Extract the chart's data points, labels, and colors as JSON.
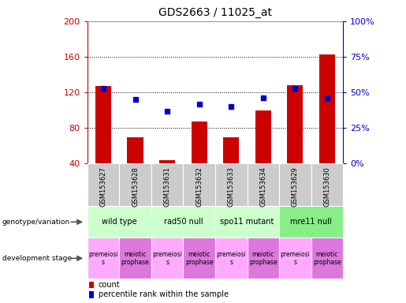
{
  "title": "GDS2663 / 11025_at",
  "samples": [
    "GSM153627",
    "GSM153628",
    "GSM153631",
    "GSM153632",
    "GSM153633",
    "GSM153634",
    "GSM153629",
    "GSM153630"
  ],
  "counts": [
    127,
    70,
    44,
    87,
    70,
    100,
    128,
    163
  ],
  "percentiles": [
    53,
    45,
    37,
    42,
    40,
    46,
    53,
    46
  ],
  "ylim_left": [
    40,
    200
  ],
  "ylim_right": [
    0,
    100
  ],
  "yticks_left": [
    40,
    80,
    120,
    160,
    200
  ],
  "yticks_right": [
    0,
    25,
    50,
    75,
    100
  ],
  "bar_color": "#cc0000",
  "dot_color": "#0000cc",
  "genotype_groups": [
    {
      "label": "wild type",
      "start": 0,
      "end": 2,
      "color": "#ccffcc"
    },
    {
      "label": "rad50 null",
      "start": 2,
      "end": 4,
      "color": "#ccffcc"
    },
    {
      "label": "spo11 mutant",
      "start": 4,
      "end": 6,
      "color": "#ccffcc"
    },
    {
      "label": "mre11 null",
      "start": 6,
      "end": 8,
      "color": "#88ee88"
    }
  ],
  "dev_stage_groups": [
    {
      "label": "premeiosi\ns",
      "start": 0,
      "end": 1,
      "color": "#ffaaff"
    },
    {
      "label": "meiotic\nprophase",
      "start": 1,
      "end": 2,
      "color": "#dd77dd"
    },
    {
      "label": "premeiosi\ns",
      "start": 2,
      "end": 3,
      "color": "#ffaaff"
    },
    {
      "label": "meiotic\nprophase",
      "start": 3,
      "end": 4,
      "color": "#dd77dd"
    },
    {
      "label": "premeiosi\ns",
      "start": 4,
      "end": 5,
      "color": "#ffaaff"
    },
    {
      "label": "meiotic\nprophase",
      "start": 5,
      "end": 6,
      "color": "#dd77dd"
    },
    {
      "label": "premeiosi\ns",
      "start": 6,
      "end": 7,
      "color": "#ffaaff"
    },
    {
      "label": "meiotic\nprophase",
      "start": 7,
      "end": 8,
      "color": "#dd77dd"
    }
  ],
  "left_axis_color": "#cc0000",
  "right_axis_color": "#0000cc",
  "background_color": "#ffffff",
  "xlabel_bg": "#cccccc",
  "bar_width": 0.5
}
